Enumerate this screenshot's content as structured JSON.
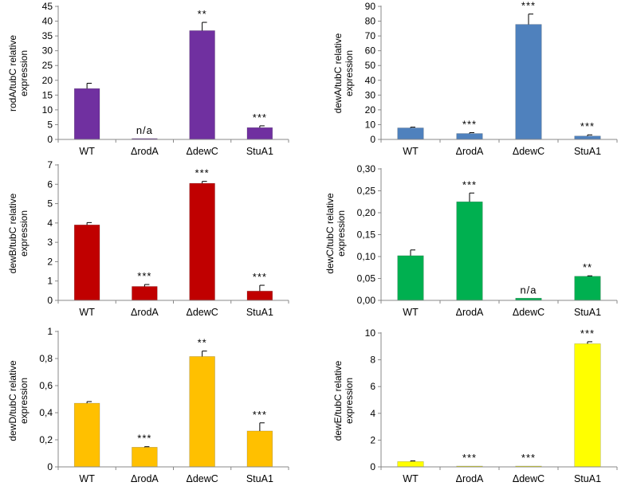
{
  "chart_data": [
    {
      "type": "bar",
      "panel": "rodA",
      "categories": [
        "WT",
        "ΔrodA",
        "ΔdewC",
        "StuA1"
      ],
      "values": [
        17.2,
        0.3,
        36.8,
        4.0
      ],
      "errors": [
        1.8,
        0,
        2.8,
        0.6
      ],
      "annotations": [
        "",
        "n/a",
        "**",
        "***"
      ],
      "ylabel_line1": "rodA/tubC relative",
      "ylabel_line2": "expression",
      "ylim": [
        0,
        45
      ],
      "yticks": [
        0,
        5,
        10,
        15,
        20,
        25,
        30,
        35,
        40,
        45
      ],
      "ytick_labels": [
        "0",
        "5",
        "10",
        "15",
        "20",
        "25",
        "30",
        "35",
        "40",
        "45"
      ],
      "color": "#7030A0"
    },
    {
      "type": "bar",
      "panel": "dewA",
      "categories": [
        "WT",
        "ΔrodA",
        "ΔdewC",
        "StuA1"
      ],
      "values": [
        7.8,
        4.0,
        77.8,
        2.3
      ],
      "errors": [
        0.5,
        0.6,
        7.0,
        0.8
      ],
      "annotations": [
        "",
        "***",
        "***",
        "***"
      ],
      "ylabel_line1": "dewA/tubC relative",
      "ylabel_line2": "expression",
      "ylim": [
        0,
        90
      ],
      "yticks": [
        0,
        10,
        20,
        30,
        40,
        50,
        60,
        70,
        80,
        90
      ],
      "ytick_labels": [
        "0",
        "10",
        "20",
        "30",
        "40",
        "50",
        "60",
        "70",
        "80",
        "90"
      ],
      "color": "#4F81BD"
    },
    {
      "type": "bar",
      "panel": "dewB",
      "categories": [
        "WT",
        "ΔrodA",
        "ΔdewC",
        "StuA1"
      ],
      "values": [
        3.9,
        0.72,
        6.05,
        0.48
      ],
      "errors": [
        0.12,
        0.1,
        0.1,
        0.3
      ],
      "annotations": [
        "",
        "***",
        "***",
        "***"
      ],
      "ylabel_line1": "dewB/tubC relative",
      "ylabel_line2": "expression",
      "ylim": [
        0,
        7
      ],
      "yticks": [
        0,
        1,
        2,
        3,
        4,
        5,
        6,
        7
      ],
      "ytick_labels": [
        "0",
        "1",
        "2",
        "3",
        "4",
        "5",
        "6",
        "7"
      ],
      "color": "#C00000"
    },
    {
      "type": "bar",
      "panel": "dewC",
      "categories": [
        "WT",
        "ΔrodA",
        "ΔdewC",
        "StuA1"
      ],
      "values": [
        0.102,
        0.225,
        0.005,
        0.055
      ],
      "errors": [
        0.013,
        0.02,
        0,
        0.001
      ],
      "annotations": [
        "",
        "***",
        "n/a",
        "**"
      ],
      "ylabel_line1": "dewC/tubC relative",
      "ylabel_line2": "expression",
      "ylim": [
        0,
        0.3
      ],
      "yticks": [
        0,
        0.05,
        0.1,
        0.15,
        0.2,
        0.25,
        0.3
      ],
      "ytick_labels": [
        "0,00",
        "0,05",
        "0,10",
        "0,15",
        "0,20",
        "0,25",
        "0,30"
      ],
      "color": "#00B050"
    },
    {
      "type": "bar",
      "panel": "dewD",
      "categories": [
        "WT",
        "ΔrodA",
        "ΔdewC",
        "StuA1"
      ],
      "values": [
        0.47,
        0.145,
        0.815,
        0.265
      ],
      "errors": [
        0.012,
        0.004,
        0.04,
        0.06
      ],
      "annotations": [
        "",
        "***",
        "**",
        "***"
      ],
      "ylabel_line1": "dewD/tubC relative",
      "ylabel_line2": "expression",
      "ylim": [
        0,
        1
      ],
      "yticks": [
        0,
        0.2,
        0.4,
        0.6,
        0.8,
        1
      ],
      "ytick_labels": [
        "0",
        "0,2",
        "0,4",
        "0,6",
        "0,8",
        "1"
      ],
      "color": "#FFC000"
    },
    {
      "type": "bar",
      "panel": "dewE",
      "categories": [
        "WT",
        "ΔrodA",
        "ΔdewC",
        "StuA1"
      ],
      "values": [
        0.4,
        0.05,
        0.06,
        9.2
      ],
      "errors": [
        0.05,
        0,
        0,
        0.15
      ],
      "annotations": [
        "",
        "***",
        "***",
        "***"
      ],
      "ylabel_line1": "dewE/tubC relative",
      "ylabel_line2": "expression",
      "ylim": [
        0,
        10
      ],
      "yticks": [
        0,
        2,
        4,
        6,
        8,
        10
      ],
      "ytick_labels": [
        "0",
        "2",
        "4",
        "6",
        "8",
        "10"
      ],
      "color": "#FFFF00"
    }
  ]
}
